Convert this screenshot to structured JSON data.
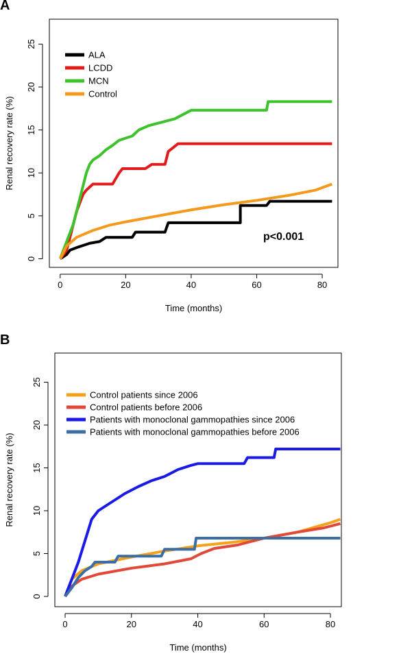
{
  "chart_data": [
    {
      "type": "line",
      "panel": "A",
      "xlabel": "Time (months)",
      "ylabel": "Renal recovery rate (%)",
      "xlim": [
        -3.3,
        84.8
      ],
      "ylim": [
        -1.0,
        27.9
      ],
      "xticks": [
        0,
        20,
        40,
        60,
        80
      ],
      "yticks": [
        0,
        5,
        10,
        15,
        20,
        25
      ],
      "annotation": {
        "text": "p<0.001",
        "x": 62,
        "y": 2.2
      },
      "series": [
        {
          "name": "ALA",
          "color": "#000000",
          "x": [
            0,
            2,
            3,
            5,
            9,
            12,
            14,
            22,
            23,
            32,
            33,
            55,
            55,
            63,
            64,
            83
          ],
          "values": [
            0,
            0.5,
            1,
            1.3,
            1.8,
            2,
            2.5,
            2.5,
            3.1,
            3.1,
            4.2,
            4.2,
            6.2,
            6.2,
            6.7,
            6.7
          ]
        },
        {
          "name": "LCDD",
          "color": "#e11b1b",
          "x": [
            0,
            2,
            3,
            4,
            5,
            6,
            7,
            8,
            10,
            16,
            18,
            19,
            26,
            28,
            32,
            33,
            36,
            83
          ],
          "values": [
            0,
            1,
            2.5,
            4,
            5.5,
            6.5,
            7.5,
            8,
            8.7,
            8.7,
            10,
            10.5,
            10.5,
            11,
            11,
            12.5,
            13.4,
            13.4
          ]
        },
        {
          "name": "MCN",
          "color": "#3cc22a",
          "x": [
            0,
            1,
            2,
            3,
            4,
            5,
            6,
            7,
            8,
            9,
            10,
            12,
            14,
            16,
            18,
            22,
            24,
            27,
            30,
            32,
            35,
            37,
            40,
            63,
            63.5,
            83
          ],
          "values": [
            0,
            1,
            2,
            3,
            4,
            5.5,
            7,
            8.5,
            10,
            11,
            11.5,
            12,
            12.7,
            13.2,
            13.8,
            14.3,
            15,
            15.5,
            15.8,
            16,
            16.3,
            16.7,
            17.3,
            17.3,
            18.3,
            18.3
          ]
        },
        {
          "name": "Control",
          "color": "#f39a1d",
          "x": [
            0,
            2,
            5,
            10,
            15,
            20,
            30,
            40,
            50,
            60,
            70,
            78,
            83
          ],
          "values": [
            0,
            1.5,
            2.5,
            3.3,
            3.9,
            4.3,
            5,
            5.7,
            6.3,
            6.8,
            7.4,
            8,
            8.7
          ]
        }
      ]
    },
    {
      "type": "line",
      "panel": "B",
      "xlabel": "Time (months)",
      "ylabel": "Renal recovery rate (%)",
      "xlim": [
        -3.1,
        83.3
      ],
      "ylim": [
        -1.2,
        28.4
      ],
      "xticks": [
        0,
        20,
        40,
        60,
        80
      ],
      "yticks": [
        0,
        5,
        10,
        15,
        20,
        25
      ],
      "series": [
        {
          "name": "Control patients since 2006",
          "color": "#f5a21b",
          "x": [
            0,
            2,
            5,
            10,
            20,
            30,
            40,
            50,
            60,
            70,
            80,
            83
          ],
          "values": [
            0,
            2,
            3,
            3.8,
            4.6,
            5.3,
            5.9,
            6.3,
            6.8,
            7.5,
            8.6,
            9
          ]
        },
        {
          "name": "Control patients before 2006",
          "color": "#e0483a",
          "x": [
            0,
            2,
            5,
            10,
            20,
            30,
            38,
            41,
            45,
            52,
            60,
            70,
            78,
            83
          ],
          "values": [
            0,
            1.2,
            2,
            2.6,
            3.3,
            3.8,
            4.4,
            5,
            5.6,
            6,
            6.8,
            7.5,
            8,
            8.5
          ]
        },
        {
          "name": "Patients with monoclonal gammopathies since 2006",
          "color": "#1a1ae6",
          "x": [
            0,
            2,
            4,
            6,
            8,
            10,
            14,
            18,
            22,
            26,
            30,
            34,
            38,
            40,
            54,
            55,
            63,
            63.5,
            83
          ],
          "values": [
            0,
            2,
            4,
            6.5,
            9,
            10,
            11,
            12,
            12.8,
            13.5,
            14,
            14.8,
            15.3,
            15.5,
            15.5,
            16.2,
            16.2,
            17.2,
            17.2
          ]
        },
        {
          "name": "Patients with monoclonal gammopathies before 2006",
          "color": "#3a6ea5",
          "x": [
            0,
            2,
            4,
            6,
            8,
            9,
            15,
            16,
            29,
            30,
            39,
            39.5,
            83
          ],
          "values": [
            0,
            1,
            2.2,
            3,
            3.5,
            4,
            4,
            4.7,
            4.7,
            5.5,
            5.5,
            6.8,
            6.8
          ]
        }
      ]
    }
  ]
}
